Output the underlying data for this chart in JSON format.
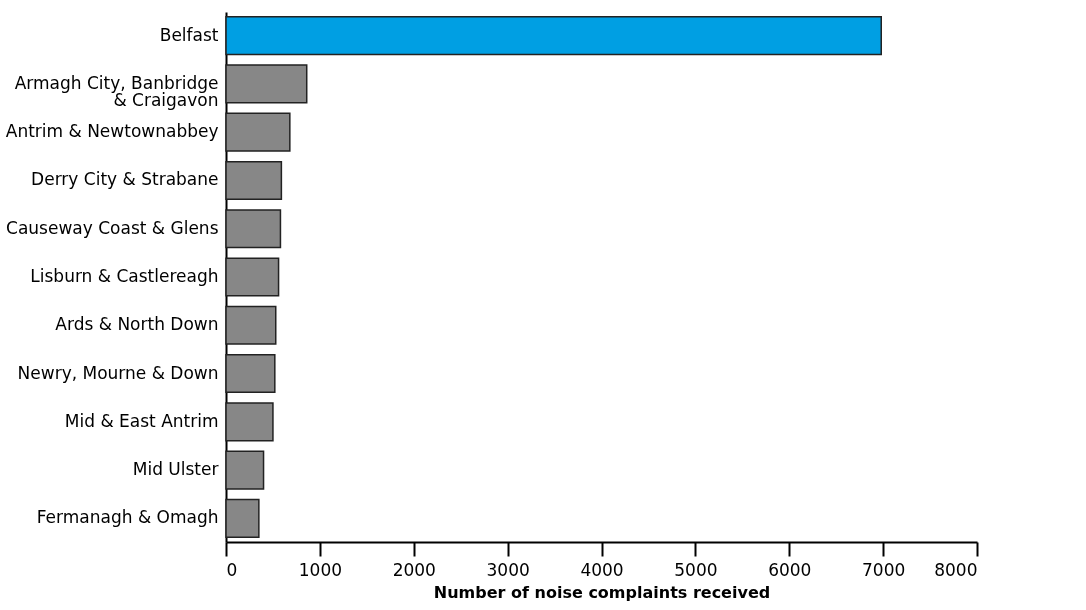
{
  "chart_data": {
    "type": "bar",
    "orientation": "horizontal",
    "xlabel": "Number of noise complaints received",
    "categories": [
      "Belfast",
      "Armagh City, Banbridge\n& Craigavon",
      "Antrim & Newtownabbey",
      "Derry City & Strabane",
      "Causeway Coast & Glens",
      "Lisburn & Castlereagh",
      "Ards & North Down",
      "Newry, Mourne & Down",
      "Mid & East Antrim",
      "Mid Ulster",
      "Fermanagh & Omagh"
    ],
    "values": [
      6980,
      860,
      680,
      590,
      580,
      560,
      530,
      520,
      500,
      400,
      350
    ],
    "colors": [
      "#009fe3",
      "#878787",
      "#878787",
      "#878787",
      "#878787",
      "#878787",
      "#878787",
      "#878787",
      "#878787",
      "#878787",
      "#878787"
    ],
    "xlim": [
      0,
      8000
    ],
    "xticks": [
      0,
      1000,
      2000,
      3000,
      4000,
      5000,
      6000,
      7000,
      8000
    ],
    "grid": false
  }
}
